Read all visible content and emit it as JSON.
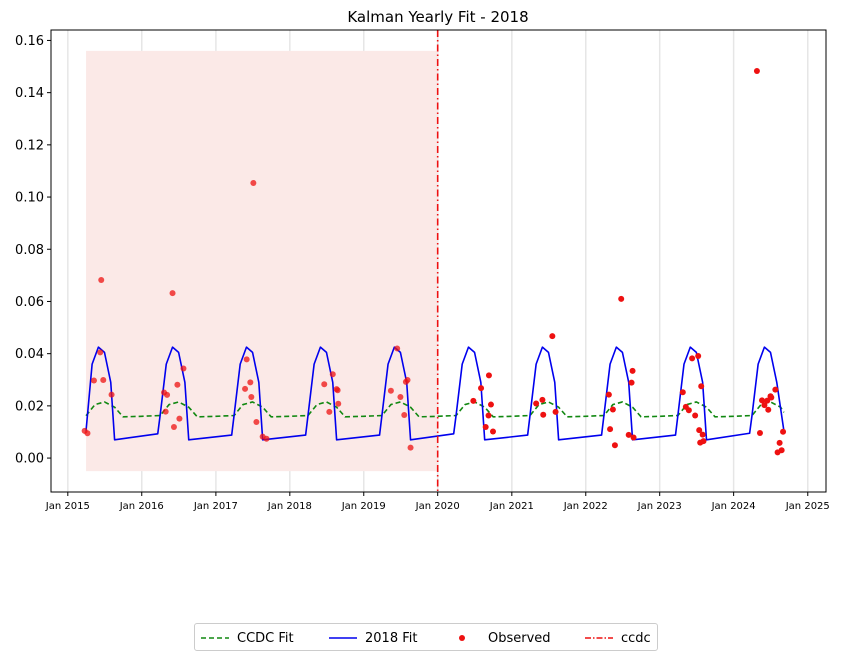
{
  "chart_data": {
    "type": "line",
    "title": "Kalman Yearly Fit - 2018",
    "xlabel": "",
    "ylabel": "",
    "xlim": [
      "2014-10-10",
      "2025-04-01"
    ],
    "ylim": [
      -0.013,
      0.164
    ],
    "y_ticks": [
      0.0,
      0.02,
      0.04,
      0.06,
      0.08,
      0.1,
      0.12,
      0.14,
      0.16
    ],
    "y_tick_labels": [
      "0.00",
      "0.02",
      "0.04",
      "0.06",
      "0.08",
      "0.10",
      "0.12",
      "0.14",
      "0.16"
    ],
    "x_ticks": [
      "2015-01-01",
      "2016-01-01",
      "2017-01-01",
      "2018-01-01",
      "2019-01-01",
      "2020-01-01",
      "2021-01-01",
      "2022-01-01",
      "2023-01-01",
      "2024-01-01",
      "2025-01-01"
    ],
    "x_tick_labels": [
      "Jan 2015",
      "Jan 2016",
      "Jan 2017",
      "Jan 2018",
      "Jan 2019",
      "Jan 2020",
      "Jan 2021",
      "Jan 2022",
      "Jan 2023",
      "Jan 2024",
      "Jan 2025"
    ],
    "grid": "vertical",
    "legend_position": "bottom-center",
    "shaded_region": {
      "x": [
        "2015-04-01",
        "2020-01-01"
      ],
      "y": [
        -0.005,
        0.156
      ],
      "color": "#fbe9e7"
    },
    "vertical_line": {
      "name": "ccdc",
      "x": "2020-01-01",
      "color": "#ee1111"
    },
    "series": [
      {
        "name": "CCDC Fit",
        "style": "dashed",
        "color": "#118811",
        "x": [
          "2015-04-01",
          "2015-05-15",
          "2015-07-01",
          "2015-08-20",
          "2015-10-01",
          "2016-01-01",
          "2016-04-01",
          "2016-05-15",
          "2016-07-01",
          "2016-08-20",
          "2016-10-01",
          "2017-01-01",
          "2017-04-01",
          "2017-05-15",
          "2017-07-01",
          "2017-08-20",
          "2017-10-01",
          "2018-01-01",
          "2018-04-01",
          "2018-05-15",
          "2018-07-01",
          "2018-08-20",
          "2018-10-01",
          "2019-01-01",
          "2019-04-01",
          "2019-05-15",
          "2019-07-01",
          "2019-08-20",
          "2019-10-01",
          "2020-01-01",
          "2020-04-01",
          "2020-05-15",
          "2020-07-01",
          "2020-08-20",
          "2020-10-01",
          "2021-01-01",
          "2021-04-01",
          "2021-05-15",
          "2021-07-01",
          "2021-08-20",
          "2021-10-01",
          "2022-01-01",
          "2022-04-01",
          "2022-05-15",
          "2022-07-01",
          "2022-08-20",
          "2022-10-01",
          "2023-01-01",
          "2023-04-01",
          "2023-05-15",
          "2023-07-01",
          "2023-08-20",
          "2023-10-01",
          "2024-01-01",
          "2024-04-01",
          "2024-05-15",
          "2024-07-01",
          "2024-08-20",
          "2024-09-05"
        ],
        "values": [
          0.0162,
          0.0205,
          0.0215,
          0.0195,
          0.0158,
          0.016,
          0.0163,
          0.0205,
          0.0215,
          0.0195,
          0.0158,
          0.016,
          0.0163,
          0.0205,
          0.0215,
          0.0195,
          0.0158,
          0.016,
          0.0163,
          0.0205,
          0.0215,
          0.0195,
          0.0158,
          0.016,
          0.0163,
          0.0205,
          0.0215,
          0.0195,
          0.0158,
          0.016,
          0.0163,
          0.0205,
          0.0215,
          0.0195,
          0.0158,
          0.016,
          0.0163,
          0.0205,
          0.0215,
          0.0195,
          0.0158,
          0.016,
          0.0163,
          0.0205,
          0.0215,
          0.0195,
          0.0158,
          0.016,
          0.0163,
          0.0205,
          0.0215,
          0.0195,
          0.0158,
          0.016,
          0.0163,
          0.0205,
          0.0215,
          0.0195,
          0.0175
        ]
      },
      {
        "name": "2018 Fit",
        "style": "solid",
        "color": "#0000ee",
        "x": [
          "2015-04-01",
          "2015-05-01",
          "2015-06-01",
          "2015-07-01",
          "2015-08-01",
          "2015-08-20",
          "2016-03-20",
          "2016-04-01",
          "2016-05-01",
          "2016-06-01",
          "2016-07-01",
          "2016-08-01",
          "2016-08-20",
          "2017-03-20",
          "2017-04-01",
          "2017-05-01",
          "2017-06-01",
          "2017-07-01",
          "2017-08-01",
          "2017-08-20",
          "2018-03-20",
          "2018-04-01",
          "2018-05-01",
          "2018-06-01",
          "2018-07-01",
          "2018-08-01",
          "2018-08-20",
          "2019-03-20",
          "2019-04-01",
          "2019-05-01",
          "2019-06-01",
          "2019-07-01",
          "2019-08-01",
          "2019-08-20",
          "2020-03-20",
          "2020-04-01",
          "2020-05-01",
          "2020-06-01",
          "2020-07-01",
          "2020-08-01",
          "2020-08-20",
          "2021-03-20",
          "2021-04-01",
          "2021-05-01",
          "2021-06-01",
          "2021-07-01",
          "2021-08-01",
          "2021-08-20",
          "2022-03-20",
          "2022-04-01",
          "2022-05-01",
          "2022-06-01",
          "2022-07-01",
          "2022-08-01",
          "2022-08-20",
          "2023-03-20",
          "2023-04-01",
          "2023-05-01",
          "2023-06-01",
          "2023-07-01",
          "2023-08-01",
          "2023-08-20",
          "2024-03-20",
          "2024-04-01",
          "2024-05-01",
          "2024-06-01",
          "2024-07-01",
          "2024-08-01",
          "2024-09-05"
        ],
        "values": [
          0.0105,
          0.036,
          0.0425,
          0.0405,
          0.029,
          0.007,
          0.0093,
          0.0165,
          0.036,
          0.0425,
          0.0405,
          0.029,
          0.007,
          0.0088,
          0.0165,
          0.036,
          0.0425,
          0.0405,
          0.029,
          0.007,
          0.0088,
          0.0165,
          0.036,
          0.0425,
          0.0405,
          0.029,
          0.007,
          0.0088,
          0.0165,
          0.036,
          0.0425,
          0.0405,
          0.029,
          0.007,
          0.0093,
          0.0165,
          0.036,
          0.0425,
          0.0405,
          0.029,
          0.007,
          0.0088,
          0.0165,
          0.036,
          0.0425,
          0.0405,
          0.029,
          0.007,
          0.0088,
          0.0165,
          0.036,
          0.0425,
          0.0405,
          0.029,
          0.007,
          0.0088,
          0.0165,
          0.036,
          0.0425,
          0.0405,
          0.029,
          0.007,
          0.0095,
          0.0165,
          0.036,
          0.0425,
          0.0405,
          0.029,
          0.0105
        ]
      },
      {
        "name": "Observed",
        "style": "scatter",
        "color": "#ee1111",
        "x": [
          "2015-03-25",
          "2015-04-08",
          "2015-05-10",
          "2015-06-10",
          "2015-06-15",
          "2015-06-25",
          "2015-08-05",
          "2016-04-20",
          "2016-04-28",
          "2016-05-05",
          "2016-06-01",
          "2016-06-08",
          "2016-06-25",
          "2016-07-05",
          "2016-07-25",
          "2017-05-25",
          "2017-06-02",
          "2017-06-20",
          "2017-06-25",
          "2017-07-05",
          "2017-07-20",
          "2017-08-20",
          "2017-09-08",
          "2018-06-20",
          "2018-07-15",
          "2018-08-01",
          "2018-08-20",
          "2018-08-25",
          "2018-08-28",
          "2019-05-15",
          "2019-06-15",
          "2019-07-01",
          "2019-07-20",
          "2019-07-28",
          "2019-08-05",
          "2019-08-20",
          "2020-06-25",
          "2020-08-02",
          "2020-08-25",
          "2020-09-08",
          "2020-09-10",
          "2020-09-20",
          "2020-09-30",
          "2021-05-01",
          "2021-06-01",
          "2021-06-05",
          "2021-07-20",
          "2021-08-05",
          "2022-04-25",
          "2022-05-01",
          "2022-05-15",
          "2022-05-25",
          "2022-06-25",
          "2022-08-01",
          "2022-08-15",
          "2022-08-20",
          "2022-08-25",
          "2023-04-25",
          "2023-05-10",
          "2023-05-25",
          "2023-06-10",
          "2023-06-25",
          "2023-07-10",
          "2023-07-15",
          "2023-07-20",
          "2023-07-25",
          "2023-08-01",
          "2023-08-05",
          "2024-04-25",
          "2024-05-10",
          "2024-05-20",
          "2024-06-01",
          "2024-06-15",
          "2024-06-20",
          "2024-07-01",
          "2024-07-05",
          "2024-07-25",
          "2024-08-05",
          "2024-08-15",
          "2024-08-25",
          "2024-09-01"
        ],
        "values": [
          0.0104,
          0.0095,
          0.0297,
          0.0405,
          0.0682,
          0.0299,
          0.0243,
          0.0251,
          0.0178,
          0.0242,
          0.0632,
          0.0119,
          0.0281,
          0.0151,
          0.0343,
          0.0265,
          0.0378,
          0.029,
          0.0234,
          0.1054,
          0.0138,
          0.0082,
          0.0074,
          0.0283,
          0.0177,
          0.0321,
          0.0264,
          0.026,
          0.0208,
          0.0258,
          0.042,
          0.0234,
          0.0165,
          0.0292,
          0.0299,
          0.004,
          0.0219,
          0.0268,
          0.0119,
          0.0163,
          0.0317,
          0.0205,
          0.0102,
          0.0209,
          0.0223,
          0.0166,
          0.0467,
          0.0177,
          0.0243,
          0.0111,
          0.0186,
          0.0049,
          0.061,
          0.0089,
          0.0289,
          0.0334,
          0.0079,
          0.0252,
          0.0196,
          0.0183,
          0.0382,
          0.0163,
          0.0391,
          0.0107,
          0.0059,
          0.0275,
          0.009,
          0.0065,
          0.1483,
          0.0096,
          0.0221,
          0.0203,
          0.022,
          0.0185,
          0.0237,
          0.0232,
          0.0262,
          0.0022,
          0.0058,
          0.003,
          0.0101
        ]
      }
    ]
  }
}
